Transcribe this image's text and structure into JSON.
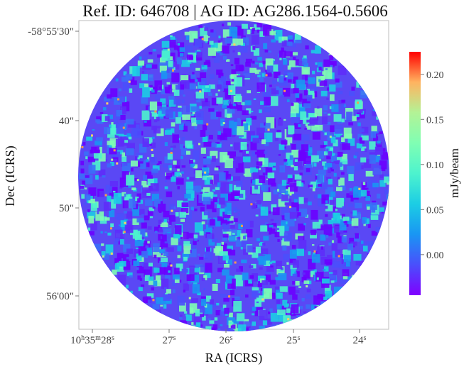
{
  "chart_data": {
    "type": "heatmap",
    "title": "Ref. ID: 646708 | AG ID: AG286.1564-0.5606",
    "xlabel": "RA (ICRS)",
    "ylabel": "Dec (ICRS)",
    "x_ticks": [
      {
        "text": "10h35m28s"
      },
      {
        "text": "27s"
      },
      {
        "text": "26s"
      },
      {
        "text": "25s"
      },
      {
        "text": "24s"
      }
    ],
    "y_ticks": [
      {
        "text": "-58°55'30\""
      },
      {
        "text": "40\""
      },
      {
        "text": "50\""
      },
      {
        "text": "56'00\""
      }
    ],
    "colorbar": {
      "label": "mJy/beam",
      "colormap": "rainbow",
      "range": [
        -0.045,
        0.225
      ],
      "ticks": [
        "0.00",
        "0.05",
        "0.10",
        "0.15",
        "0.20"
      ],
      "tick_values": [
        0.0,
        0.05,
        0.1,
        0.15,
        0.2
      ]
    },
    "image": {
      "shape": "circular",
      "description_of_values": "noise-like map, mostly between -0.04 and 0.12 mJy/beam with sparse peaks near 0.20"
    }
  }
}
